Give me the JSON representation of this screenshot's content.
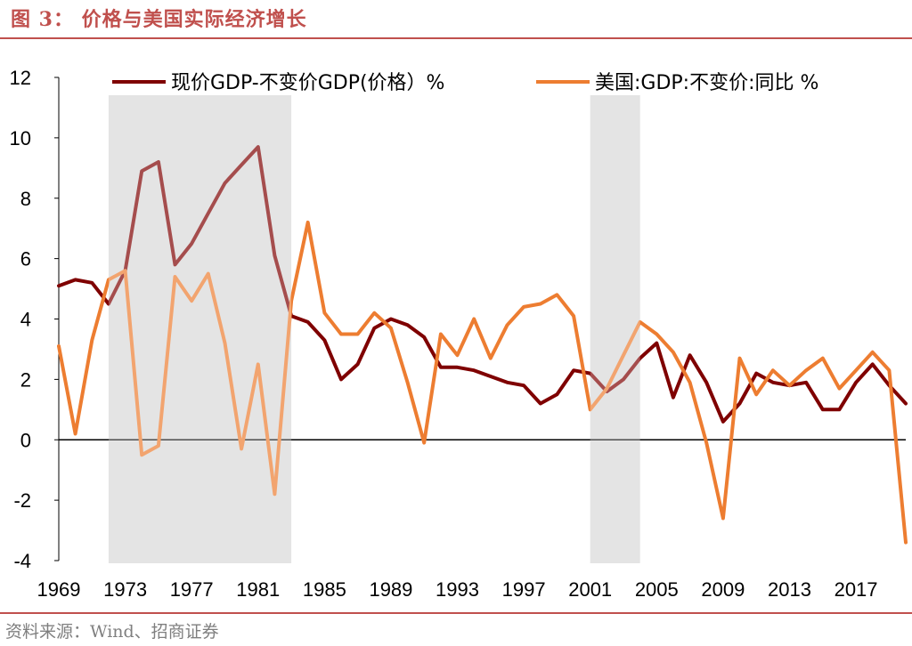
{
  "header": {
    "title": "图 3： 价格与美国实际经济增长",
    "accent_color": "#c0504d"
  },
  "footer": {
    "source": "资料来源：Wind、招商证券"
  },
  "chart_data": {
    "type": "line",
    "title": "",
    "xlabel": "",
    "ylabel": "",
    "ylim": [
      -4,
      12
    ],
    "yticks": [
      12,
      10,
      8,
      6,
      4,
      2,
      0,
      -2,
      -4
    ],
    "xlim": [
      1969,
      2020
    ],
    "xtick_labels": [
      "1969",
      "1973",
      "1977",
      "1981",
      "1985",
      "1989",
      "1993",
      "1997",
      "2001",
      "2005",
      "2009",
      "2013",
      "2017"
    ],
    "legend_position": "top",
    "grid": false,
    "shaded_periods": [
      [
        1972,
        1983
      ],
      [
        2001,
        2004
      ]
    ],
    "shade_color": "#d9d9d9",
    "x": [
      1969,
      1970,
      1971,
      1972,
      1973,
      1974,
      1975,
      1976,
      1977,
      1978,
      1979,
      1980,
      1981,
      1982,
      1983,
      1984,
      1985,
      1986,
      1987,
      1988,
      1989,
      1990,
      1991,
      1992,
      1993,
      1994,
      1995,
      1996,
      1997,
      1998,
      1999,
      2000,
      2001,
      2002,
      2003,
      2004,
      2005,
      2006,
      2007,
      2008,
      2009,
      2010,
      2011,
      2012,
      2013,
      2014,
      2015,
      2016,
      2017,
      2018,
      2019,
      2020
    ],
    "series": [
      {
        "name": "现价GDP-不变价GDP(价格）%",
        "color": "#7f0000",
        "values": [
          5.1,
          5.3,
          5.2,
          4.5,
          5.6,
          8.9,
          9.2,
          5.8,
          6.5,
          7.5,
          8.5,
          9.1,
          9.7,
          6.1,
          4.1,
          3.9,
          3.3,
          2.0,
          2.5,
          3.7,
          4.0,
          3.8,
          3.4,
          2.4,
          2.4,
          2.3,
          2.1,
          1.9,
          1.8,
          1.2,
          1.5,
          2.3,
          2.2,
          1.6,
          2.0,
          2.7,
          3.2,
          1.4,
          2.8,
          1.9,
          0.6,
          1.2,
          2.2,
          1.9,
          1.8,
          1.9,
          1.0,
          1.0,
          1.9,
          2.5,
          1.8,
          1.2
        ]
      },
      {
        "name": "美国:GDP:不变价:同比 %",
        "color": "#ed7d31",
        "values": [
          3.1,
          0.2,
          3.3,
          5.3,
          5.6,
          -0.5,
          -0.2,
          5.4,
          4.6,
          5.5,
          3.2,
          -0.3,
          2.5,
          -1.8,
          4.6,
          7.2,
          4.2,
          3.5,
          3.5,
          4.2,
          3.7,
          1.9,
          -0.1,
          3.5,
          2.8,
          4.0,
          2.7,
          3.8,
          4.4,
          4.5,
          4.8,
          4.1,
          1.0,
          1.7,
          2.8,
          3.9,
          3.5,
          2.9,
          1.9,
          -0.1,
          -2.6,
          2.7,
          1.5,
          2.3,
          1.8,
          2.3,
          2.7,
          1.7,
          2.3,
          2.9,
          2.3,
          -3.4
        ]
      }
    ]
  }
}
